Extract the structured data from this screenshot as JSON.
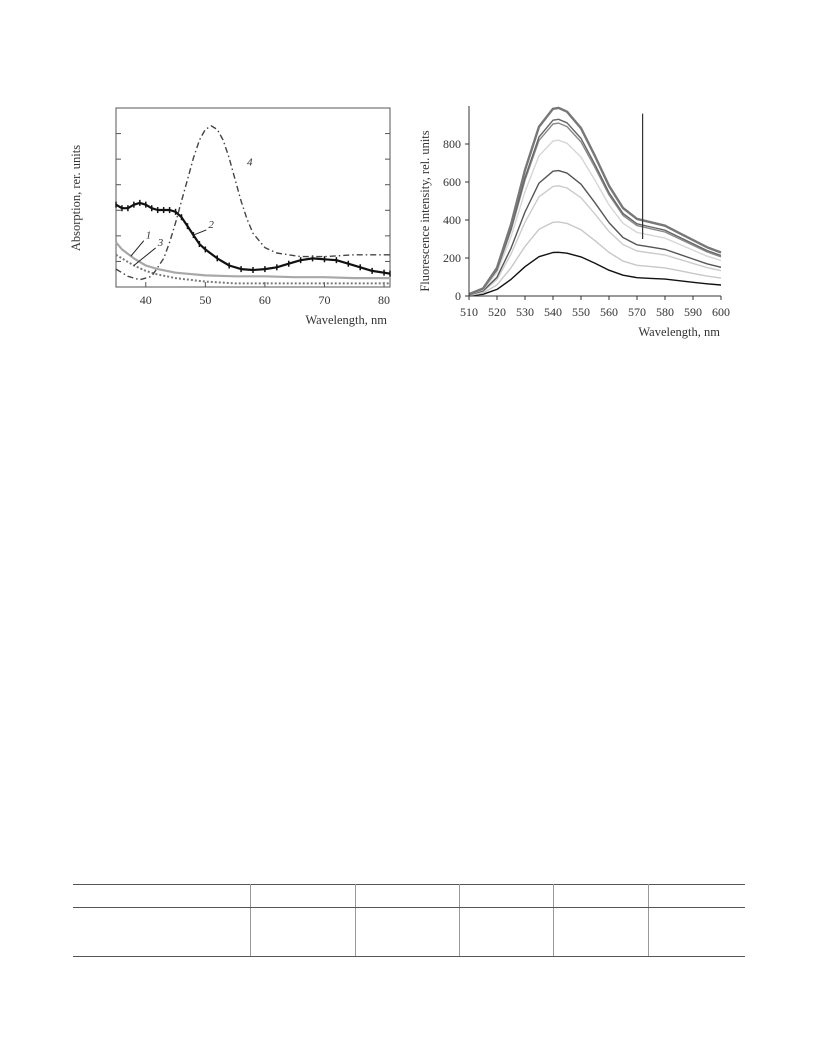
{
  "chart_data": [
    {
      "type": "line",
      "title": "",
      "xlabel": "Wavelength, nm",
      "ylabel": "Absorption, rer. units",
      "xlim": [
        35,
        81
      ],
      "ylim": [
        0,
        1.0
      ],
      "xticks": [
        40,
        50,
        60,
        70,
        80
      ],
      "yticks_labeled": false,
      "grid": false,
      "legend": "none",
      "curve_labels": [
        "1",
        "2",
        "3",
        "4"
      ],
      "series": [
        {
          "name": "1",
          "color": "#a8a8a8",
          "style": "solid",
          "x": [
            35,
            36,
            38,
            40,
            42,
            45,
            50,
            55,
            60,
            65,
            70,
            75,
            81
          ],
          "y": [
            0.25,
            0.21,
            0.16,
            0.12,
            0.1,
            0.08,
            0.065,
            0.06,
            0.06,
            0.055,
            0.055,
            0.05,
            0.05
          ]
        },
        {
          "name": "2",
          "color": "#111111",
          "style": "solid-markers",
          "x": [
            35,
            36,
            37,
            38,
            39,
            40,
            41,
            42,
            43,
            44,
            45,
            46,
            47,
            48,
            49,
            50,
            52,
            54,
            56,
            58,
            60,
            62,
            64,
            66,
            68,
            70,
            72,
            74,
            76,
            78,
            80,
            81
          ],
          "y": [
            0.46,
            0.44,
            0.44,
            0.46,
            0.47,
            0.46,
            0.44,
            0.43,
            0.43,
            0.43,
            0.42,
            0.39,
            0.34,
            0.29,
            0.24,
            0.21,
            0.16,
            0.12,
            0.1,
            0.095,
            0.1,
            0.11,
            0.13,
            0.15,
            0.16,
            0.155,
            0.15,
            0.13,
            0.11,
            0.09,
            0.08,
            0.075
          ]
        },
        {
          "name": "3",
          "color": "#7a7a7a",
          "style": "dotted",
          "x": [
            35,
            36,
            38,
            40,
            42,
            45,
            50,
            55,
            60,
            65,
            70,
            75,
            81
          ],
          "y": [
            0.18,
            0.16,
            0.12,
            0.09,
            0.07,
            0.05,
            0.03,
            0.02,
            0.02,
            0.02,
            0.02,
            0.02,
            0.02
          ]
        },
        {
          "name": "4",
          "color": "#444444",
          "style": "dash-dot",
          "x": [
            35,
            37,
            39,
            41,
            43,
            44,
            45,
            46,
            47,
            48,
            49,
            50,
            51,
            52,
            53,
            54,
            55,
            56,
            57,
            58,
            60,
            62,
            64,
            66,
            68,
            70,
            75,
            81
          ],
          "y": [
            0.1,
            0.06,
            0.04,
            0.06,
            0.16,
            0.25,
            0.36,
            0.48,
            0.6,
            0.72,
            0.82,
            0.88,
            0.9,
            0.88,
            0.82,
            0.72,
            0.6,
            0.48,
            0.38,
            0.3,
            0.22,
            0.19,
            0.18,
            0.17,
            0.17,
            0.17,
            0.18,
            0.18
          ]
        }
      ]
    },
    {
      "type": "line",
      "title": "",
      "xlabel": "Wavelength, nm",
      "ylabel": "Fluorescence intensity, rel. units",
      "xlim": [
        510,
        600
      ],
      "ylim": [
        0,
        1000
      ],
      "xticks": [
        510,
        520,
        530,
        540,
        550,
        560,
        570,
        580,
        590,
        600
      ],
      "yticks": [
        0,
        200,
        400,
        600,
        800
      ],
      "grid": false,
      "legend": "none",
      "annotation": "vertical arrow at 572 nm (intensity increase)",
      "shape": {
        "x": [
          510,
          515,
          520,
          525,
          530,
          535,
          540,
          542,
          545,
          550,
          555,
          560,
          565,
          570,
          575,
          580,
          585,
          590,
          595,
          600
        ],
        "y": [
          0.01,
          0.04,
          0.15,
          0.38,
          0.67,
          0.9,
          0.995,
          1.0,
          0.98,
          0.88,
          0.72,
          0.55,
          0.42,
          0.35,
          0.32,
          0.29,
          0.24,
          0.19,
          0.14,
          0.1
        ]
      },
      "series": [
        {
          "peak": 230,
          "tail": 35,
          "color": "#111111"
        },
        {
          "peak": 390,
          "tail": 55,
          "color": "#c8c8c8"
        },
        {
          "peak": 580,
          "tail": 75,
          "color": "#cccccc"
        },
        {
          "peak": 660,
          "tail": 85,
          "color": "#555555"
        },
        {
          "peak": 820,
          "tail": 105,
          "color": "#d6d6d6"
        },
        {
          "peak": 910,
          "tail": 115,
          "color": "#888888"
        },
        {
          "peak": 930,
          "tail": 120,
          "color": "#666666"
        },
        {
          "peak": 990,
          "tail": 130,
          "color": "#777777"
        }
      ]
    }
  ]
}
